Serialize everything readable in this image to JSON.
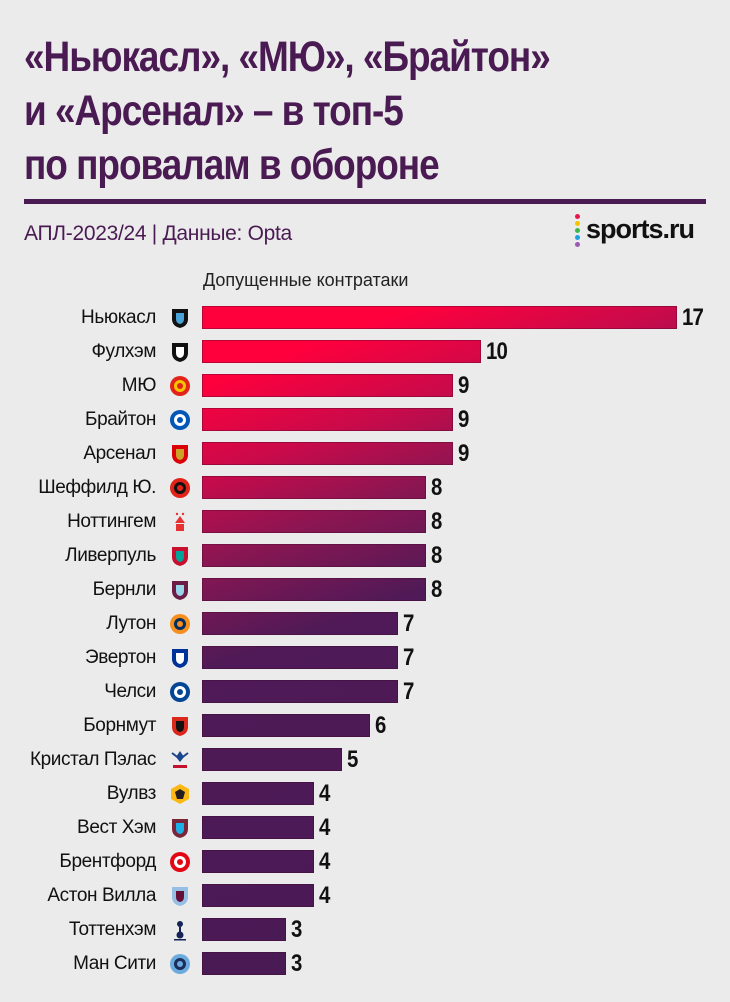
{
  "header": {
    "title_lines": [
      "«Ньюкасл», «МЮ», «Брайтон»",
      "и «Арсенал» – в топ-5",
      "по провалам в обороне"
    ],
    "subtitle": "АПЛ-2023/24 | Данные: Opta",
    "logo_text": "sports.ru",
    "logo_dot_colors": [
      "#e8174f",
      "#f5c400",
      "#3cb84b",
      "#1ea0e0",
      "#9b59b6"
    ]
  },
  "colors": {
    "title": "#4a1a52",
    "bar_top": "#ff003d",
    "bar_bottom": "#4a1a55",
    "background": "#ebebeb"
  },
  "chart_data": {
    "type": "bar",
    "orientation": "horizontal",
    "title": "«Ньюкасл», «МЮ», «Брайтон» и «Арсенал» – в топ-5 по провалам в обороне",
    "subtitle": "АПЛ-2023/24 | Данные: Opta",
    "xlabel": "Допущенные контратаки",
    "ylabel": "",
    "xlim": [
      0,
      17
    ],
    "grid": false,
    "legend": "none",
    "categories": [
      "Ньюкасл",
      "Фулхэм",
      "МЮ",
      "Брайтон",
      "Арсенал",
      "Шеффилд Ю.",
      "Ноттингем",
      "Ливерпуль",
      "Бернли",
      "Лутон",
      "Эвертон",
      "Челси",
      "Борнмут",
      "Кристал Пэлас",
      "Вулвз",
      "Вест Хэм",
      "Брентфорд",
      "Астон Вилла",
      "Тоттенхэм",
      "Ман Сити"
    ],
    "values": [
      17,
      10,
      9,
      9,
      9,
      8,
      8,
      8,
      8,
      7,
      7,
      7,
      6,
      5,
      4,
      4,
      4,
      4,
      3,
      3
    ],
    "crest_icons": [
      "newcastle-crest",
      "fulham-crest",
      "man-utd-crest",
      "brighton-crest",
      "arsenal-crest",
      "sheffield-utd-crest",
      "nottingham-crest",
      "liverpool-crest",
      "burnley-crest",
      "luton-crest",
      "everton-crest",
      "chelsea-crest",
      "bournemouth-crest",
      "crystal-palace-crest",
      "wolves-crest",
      "west-ham-crest",
      "brentford-crest",
      "aston-villa-crest",
      "tottenham-crest",
      "man-city-crest"
    ]
  }
}
